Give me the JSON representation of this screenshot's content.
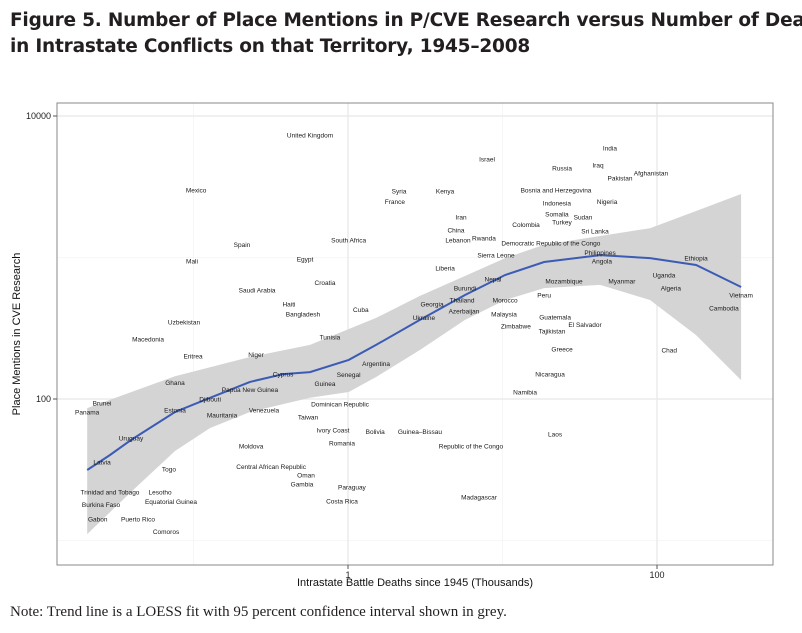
{
  "title_line1": "Figure 5. Number of Place Mentions in P/CVE Research versus Number of Deaths",
  "title_line2": "in Intrastate Conflicts on that Territory, 1945–2008",
  "note": "Note: Trend line is a LOESS fit with 95 percent confidence interval shown in grey.",
  "colors": {
    "trend": "#3b5bb5",
    "band": "#d4d4d4",
    "grid": "#ebebeb",
    "axis": "#888888"
  },
  "chart_data": {
    "type": "scatter",
    "title": "Figure 5. Number of Place Mentions in P/CVE Research versus Number of Deaths in Intrastate Conflicts on that Territory, 1945–2008",
    "xlabel": "Intrastate Battle Deaths since 1945 (Thousands)",
    "ylabel": "Place Mentions in CVE Research",
    "xscale": "log",
    "yscale": "log",
    "xlim": [
      0.013,
      564
    ],
    "ylim": [
      6.7,
      12360
    ],
    "xticks": [
      {
        "value": 1,
        "label": "1"
      },
      {
        "value": 100,
        "label": "100"
      }
    ],
    "yticks": [
      {
        "value": 100,
        "label": "100"
      },
      {
        "value": 10000,
        "label": "10000"
      }
    ],
    "minor_grid_x": [
      0.1,
      10
    ],
    "minor_grid_y": [
      10,
      1000
    ],
    "grid": true,
    "points": [
      {
        "label": "United Kingdom",
        "x": 0.568,
        "y": 7340
      },
      {
        "label": "Mexico",
        "x": 0.104,
        "y": 3000
      },
      {
        "label": "Spain",
        "x": 0.206,
        "y": 1230
      },
      {
        "label": "Mali",
        "x": 0.0978,
        "y": 944
      },
      {
        "label": "Egypt",
        "x": 0.527,
        "y": 975
      },
      {
        "label": "South Africa",
        "x": 1.01,
        "y": 1330
      },
      {
        "label": "Croatia",
        "x": 0.71,
        "y": 661
      },
      {
        "label": "Saudi Arabia",
        "x": 0.258,
        "y": 589
      },
      {
        "label": "Haiti",
        "x": 0.415,
        "y": 469
      },
      {
        "label": "Bangladesh",
        "x": 0.511,
        "y": 399
      },
      {
        "label": "Cuba",
        "x": 1.21,
        "y": 426
      },
      {
        "label": "Uzbekistan",
        "x": 0.0868,
        "y": 350
      },
      {
        "label": "Israel",
        "x": 7.94,
        "y": 4960
      },
      {
        "label": "India",
        "x": 49.6,
        "y": 5940
      },
      {
        "label": "Russia",
        "x": 24.3,
        "y": 4290
      },
      {
        "label": "Iraq",
        "x": 41.5,
        "y": 4500
      },
      {
        "label": "Pakistan",
        "x": 57.6,
        "y": 3640
      },
      {
        "label": "Afghanistan",
        "x": 91.4,
        "y": 3950
      },
      {
        "label": "Syria",
        "x": 2.14,
        "y": 2950
      },
      {
        "label": "France",
        "x": 2.01,
        "y": 2770
      },
      {
        "label": "Kenya",
        "x": 4.25,
        "y": 2950
      },
      {
        "label": "Bosnia and Herzegovina",
        "x": 22.2,
        "y": 3000
      },
      {
        "label": "Indonesia",
        "x": 22.5,
        "y": 2720
      },
      {
        "label": "Somalia",
        "x": 22.5,
        "y": 2550
      },
      {
        "label": "Nigeria",
        "x": 47.5,
        "y": 2470
      },
      {
        "label": "Iran",
        "x": 5.39,
        "y": 1930
      },
      {
        "label": "China",
        "x": 5.0,
        "y": 1750
      },
      {
        "label": "Colombia",
        "x": 14.2,
        "y": 1700
      },
      {
        "label": "Turkey",
        "x": 19.7,
        "y": 1780
      },
      {
        "label": "Sudan",
        "x": 33.2,
        "y": 1930
      },
      {
        "label": "Sri Lanka",
        "x": 39.7,
        "y": 1540
      },
      {
        "label": "Lebanon",
        "x": 5.15,
        "y": 1330
      },
      {
        "label": "Rwanda",
        "x": 6.16,
        "y": 1370
      },
      {
        "label": "Democratic Republic of the Congo",
        "x": 16.7,
        "y": 1420
      },
      {
        "label": "Sierra Leone",
        "x": 9.08,
        "y": 1040
      },
      {
        "label": "Philippines",
        "x": 42.8,
        "y": 1080
      },
      {
        "label": "Angola",
        "x": 44.0,
        "y": 944
      },
      {
        "label": "Ethiopia",
        "x": 179,
        "y": 991
      },
      {
        "label": "Liberia",
        "x": 4.25,
        "y": 843
      },
      {
        "label": "Nepal",
        "x": 8.68,
        "y": 705
      },
      {
        "label": "Mozambique",
        "x": 25.0,
        "y": 682
      },
      {
        "label": "Myanmar",
        "x": 59.3,
        "y": 682
      },
      {
        "label": "Uganda",
        "x": 111,
        "y": 752
      },
      {
        "label": "Burundi",
        "x": 5.72,
        "y": 608
      },
      {
        "label": "Algeria",
        "x": 123,
        "y": 608
      },
      {
        "label": "Peru",
        "x": 18.6,
        "y": 543
      },
      {
        "label": "Vietnam",
        "x": 350,
        "y": 543
      },
      {
        "label": "Georgia",
        "x": 3.5,
        "y": 469
      },
      {
        "label": "Thailand",
        "x": 4.44,
        "y": 501
      },
      {
        "label": "Azerbaijan",
        "x": 4.57,
        "y": 469
      },
      {
        "label": "Morocco",
        "x": 10.4,
        "y": 501
      },
      {
        "label": "Malaysia",
        "x": 8.3,
        "y": 447
      },
      {
        "label": "Cambodia",
        "x": 271,
        "y": 440
      },
      {
        "label": "Ukraine",
        "x": 3.1,
        "y": 374
      },
      {
        "label": "Zimbabwe",
        "x": 12.2,
        "y": 367
      },
      {
        "label": "Guatemala",
        "x": 21.9,
        "y": 380
      },
      {
        "label": "El Salvador",
        "x": 34.2,
        "y": 374
      },
      {
        "label": "Tajikistan",
        "x": 20.9,
        "y": 339
      },
      {
        "label": "Macedonia",
        "x": 0.0508,
        "y": 265
      },
      {
        "label": "Tunisia",
        "x": 0.764,
        "y": 274
      },
      {
        "label": "Eritrea",
        "x": 0.0993,
        "y": 201
      },
      {
        "label": "Niger",
        "x": 0.254,
        "y": 205
      },
      {
        "label": "Argentina",
        "x": 1.52,
        "y": 177
      },
      {
        "label": "Cyprus",
        "x": 0.38,
        "y": 150
      },
      {
        "label": "Senegal",
        "x": 1.01,
        "y": 148
      },
      {
        "label": "Ghana",
        "x": 0.0759,
        "y": 130
      },
      {
        "label": "Guinea",
        "x": 0.71,
        "y": 128
      },
      {
        "label": "Papua New Guinea",
        "x": 0.232,
        "y": 116
      },
      {
        "label": "Djibouti",
        "x": 0.128,
        "y": 100
      },
      {
        "label": "Dominican Republic",
        "x": 0.888,
        "y": 92
      },
      {
        "label": "Panama",
        "x": 0.0205,
        "y": 80.9
      },
      {
        "label": "Brunei",
        "x": 0.0256,
        "y": 83.6
      },
      {
        "label": "Estonia",
        "x": 0.0759,
        "y": 83.6
      },
      {
        "label": "Mauritania",
        "x": 0.153,
        "y": 77.1
      },
      {
        "label": "Venezuela",
        "x": 0.286,
        "y": 83.6
      },
      {
        "label": "Taiwan",
        "x": 0.551,
        "y": 83.6
      },
      {
        "label": "Ivory Coast",
        "x": 0.8,
        "y": 60.4
      },
      {
        "label": "Bolivia",
        "x": 1.5,
        "y": 58.5
      },
      {
        "label": "Romania",
        "x": 0.914,
        "y": 48.8
      },
      {
        "label": "Uruguay",
        "x": 0.0394,
        "y": 53.0
      },
      {
        "label": "Moldova",
        "x": 0.236,
        "y": 46.5
      },
      {
        "label": "Latvia",
        "x": 0.0256,
        "y": 35.9
      },
      {
        "label": "Togo",
        "x": 0.0694,
        "y": 32.0
      },
      {
        "label": "Central African Republic",
        "x": 0.318,
        "y": 33.1
      },
      {
        "label": "Oman",
        "x": 0.535,
        "y": 29.0
      },
      {
        "label": "Gambia",
        "x": 0.504,
        "y": 28.1
      },
      {
        "label": "Trinidad and Tobago",
        "x": 0.0288,
        "y": 22.0
      },
      {
        "label": "Lesotho",
        "x": 0.0493,
        "y": 22.0
      },
      {
        "label": "Equatorial Guinea",
        "x": 0.0715,
        "y": 21.0
      },
      {
        "label": "Burkina Faso",
        "x": 0.0252,
        "y": 20.0
      },
      {
        "label": "Gabon",
        "x": 0.024,
        "y": 17.8
      },
      {
        "label": "Puerto Rico",
        "x": 0.0288,
        "y": 17.8
      },
      {
        "label": "Costa Rica",
        "x": 0.914,
        "y": 19.0
      },
      {
        "label": "Paraguay",
        "x": 1.06,
        "y": 19.0
      },
      {
        "label": "Comoros",
        "x": 0.0664,
        "y": 12.9
      },
      {
        "label": "Guinea–Bissau",
        "x": 2.92,
        "y": 58.5
      },
      {
        "label": "Republic of the Congo",
        "x": 6.25,
        "y": 52.1
      },
      {
        "label": "Laos",
        "x": 21.9,
        "y": 56.6
      },
      {
        "label": "Madagascar",
        "x": 7.05,
        "y": 20.3
      },
      {
        "label": "Greece",
        "x": 24.3,
        "y": 225
      },
      {
        "label": "Chad",
        "x": 120,
        "y": 222
      },
      {
        "label": "Nicaragua",
        "x": 20.3,
        "y": 150
      },
      {
        "label": "Namibia",
        "x": 14.0,
        "y": 112
      }
    ],
    "trend": {
      "method": "LOESS",
      "x": [
        0.0205,
        0.0288,
        0.0394,
        0.0759,
        0.128,
        0.232,
        0.38,
        0.568,
        1.01,
        1.52,
        2.92,
        5.72,
        10.4,
        18.6,
        42.8,
        90.1,
        179,
        350
      ],
      "y": [
        31.5,
        40.2,
        51.3,
        80.9,
        102,
        132,
        150,
        155,
        189,
        241,
        362,
        543,
        752,
        929,
        1040,
        991,
        885,
        619
      ]
    },
    "ci_band": {
      "upper": {
        "x": [
          0.0205,
          0.0759,
          0.232,
          0.568,
          1.52,
          2.92,
          5.72,
          10.4,
          18.6,
          42.8,
          90.1,
          179,
          350
        ],
        "y": [
          86.3,
          145,
          198,
          241,
          374,
          535,
          740,
          991,
          1230,
          1420,
          1610,
          2130,
          2810
        ]
      },
      "lower": {
        "x": [
          0.0205,
          0.0394,
          0.0759,
          0.128,
          0.232,
          0.568,
          1.01,
          1.52,
          2.92,
          5.72,
          10.4,
          18.6,
          42.8,
          90.1,
          179,
          350
        ],
        "y": [
          11.1,
          22.0,
          42.9,
          62.4,
          80.9,
          102,
          112,
          143,
          222,
          362,
          501,
          608,
          640,
          501,
          283,
          136
        ]
      }
    }
  }
}
